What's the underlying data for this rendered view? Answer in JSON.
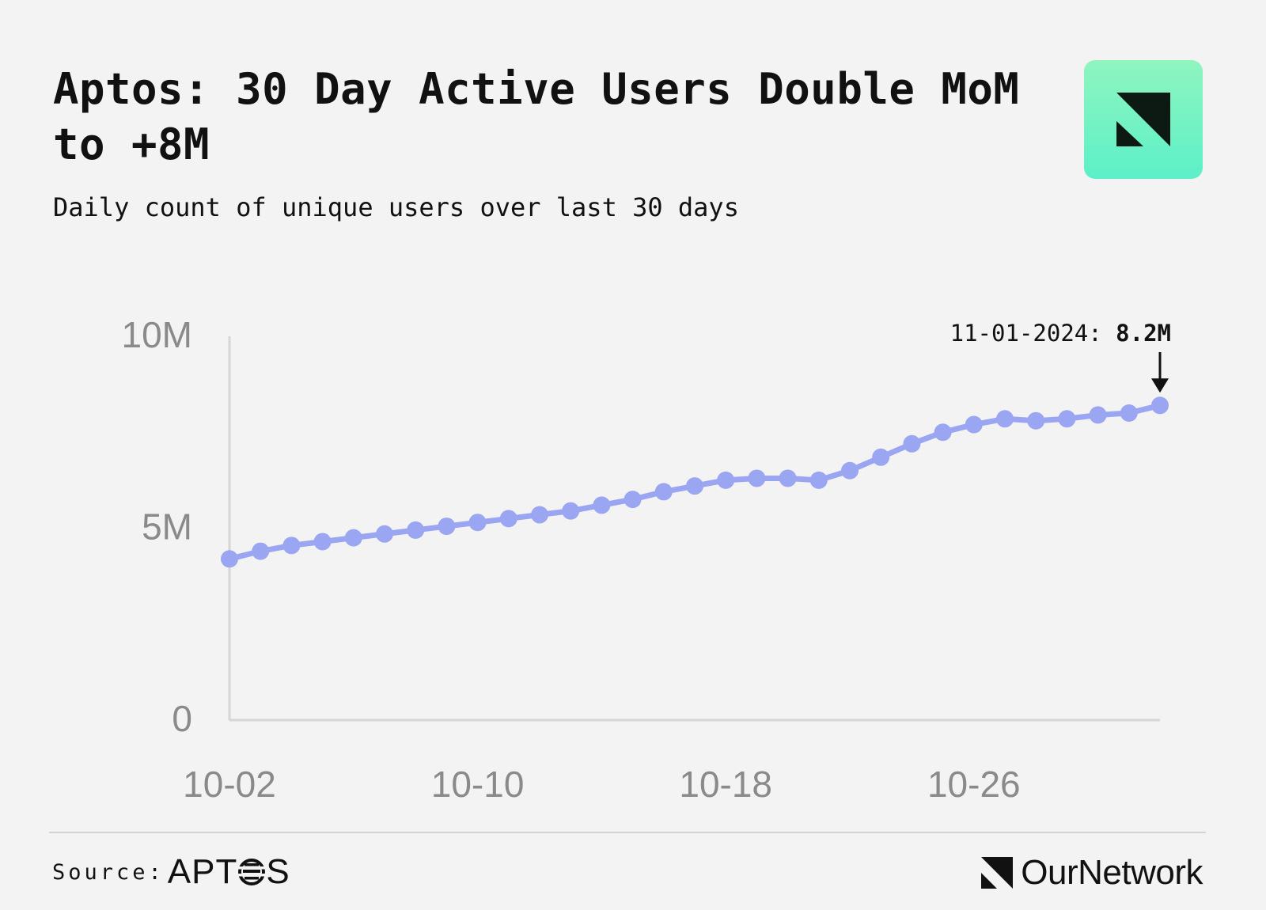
{
  "header": {
    "title": "Aptos: 30 Day Active Users Double MoM to +8M",
    "subtitle": "Daily count of unique users over last 30 days"
  },
  "logo": {
    "icon": "ournetwork-logo-icon",
    "colors": [
      "#8ff5bf",
      "#5cf0c8"
    ]
  },
  "chart_data": {
    "type": "line",
    "series_color": "#9aa6f2",
    "x": [
      "10-02",
      "10-03",
      "10-04",
      "10-05",
      "10-06",
      "10-07",
      "10-08",
      "10-09",
      "10-10",
      "10-11",
      "10-12",
      "10-13",
      "10-14",
      "10-15",
      "10-16",
      "10-17",
      "10-18",
      "10-19",
      "10-20",
      "10-21",
      "10-22",
      "10-23",
      "10-24",
      "10-25",
      "10-26",
      "10-27",
      "10-28",
      "10-29",
      "10-30",
      "10-31",
      "11-01"
    ],
    "values": [
      4.2,
      4.4,
      4.55,
      4.65,
      4.75,
      4.85,
      4.95,
      5.05,
      5.15,
      5.25,
      5.35,
      5.45,
      5.6,
      5.75,
      5.95,
      6.1,
      6.25,
      6.3,
      6.3,
      6.25,
      6.5,
      6.85,
      7.2,
      7.5,
      7.7,
      7.85,
      7.8,
      7.85,
      7.95,
      8.0,
      8.2
    ],
    "x_ticks": [
      "10-02",
      "10-10",
      "10-18",
      "10-26"
    ],
    "y_ticks": [
      "0",
      "5M",
      "10M"
    ],
    "y_tick_values": [
      0,
      5,
      10
    ],
    "ylim": [
      0,
      10
    ],
    "grid": false,
    "annotation": {
      "label": "11-01-2024: ",
      "value": "8.2M",
      "x": "11-01",
      "y": 8.2
    }
  },
  "footer": {
    "source_label": "Source:",
    "source_brand_left": "APT",
    "source_brand_right": "S",
    "brand_name": "OurNetwork"
  }
}
